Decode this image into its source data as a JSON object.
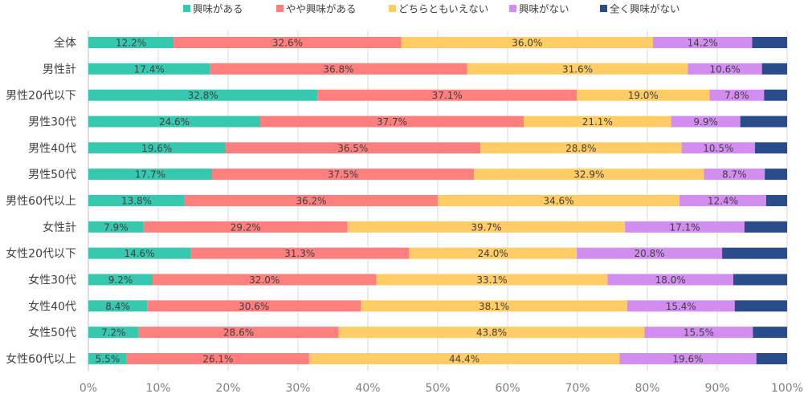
{
  "chart_data": {
    "type": "bar",
    "orientation": "horizontal",
    "stacked": "percent",
    "title": "",
    "xlabel": "",
    "ylabel": "",
    "xlim": [
      0,
      100
    ],
    "x_ticks": [
      "0%",
      "10%",
      "20%",
      "30%",
      "40%",
      "50%",
      "60%",
      "70%",
      "80%",
      "90%",
      "100%"
    ],
    "grid": true,
    "legend_position": "top",
    "categories": [
      "全体",
      "男性計",
      "男性20代以下",
      "男性30代",
      "男性40代",
      "男性50代",
      "男性60代以上",
      "女性計",
      "女性20代以下",
      "女性30代",
      "女性40代",
      "女性50代",
      "女性60代以上"
    ],
    "series": [
      {
        "name": "興味がある",
        "color": "#37c9b0",
        "labeled": true,
        "values": [
          12.2,
          17.4,
          32.8,
          24.6,
          19.6,
          17.7,
          13.8,
          7.9,
          14.6,
          9.2,
          8.4,
          7.2,
          5.5
        ]
      },
      {
        "name": "やや興味がある",
        "color": "#ff7f7f",
        "labeled": true,
        "values": [
          32.6,
          36.8,
          37.1,
          37.7,
          36.5,
          37.5,
          36.2,
          29.2,
          31.3,
          32.0,
          30.6,
          28.6,
          26.1
        ]
      },
      {
        "name": "どちらともいえない",
        "color": "#ffcc66",
        "labeled": true,
        "values": [
          36.0,
          31.6,
          19.0,
          21.1,
          28.8,
          32.9,
          34.6,
          39.7,
          24.0,
          33.1,
          38.1,
          43.8,
          44.4
        ]
      },
      {
        "name": "興味がない",
        "color": "#d18ef0",
        "labeled": true,
        "values": [
          14.2,
          10.6,
          7.8,
          9.9,
          10.5,
          8.7,
          12.4,
          17.1,
          20.8,
          18.0,
          15.4,
          15.5,
          19.6
        ]
      },
      {
        "name": "全く興味がない",
        "color": "#2b4c8a",
        "labeled": false,
        "values": [
          5.0,
          3.6,
          3.3,
          6.7,
          4.6,
          3.2,
          3.0,
          6.1,
          9.3,
          7.7,
          7.5,
          4.9,
          4.4
        ]
      }
    ]
  }
}
